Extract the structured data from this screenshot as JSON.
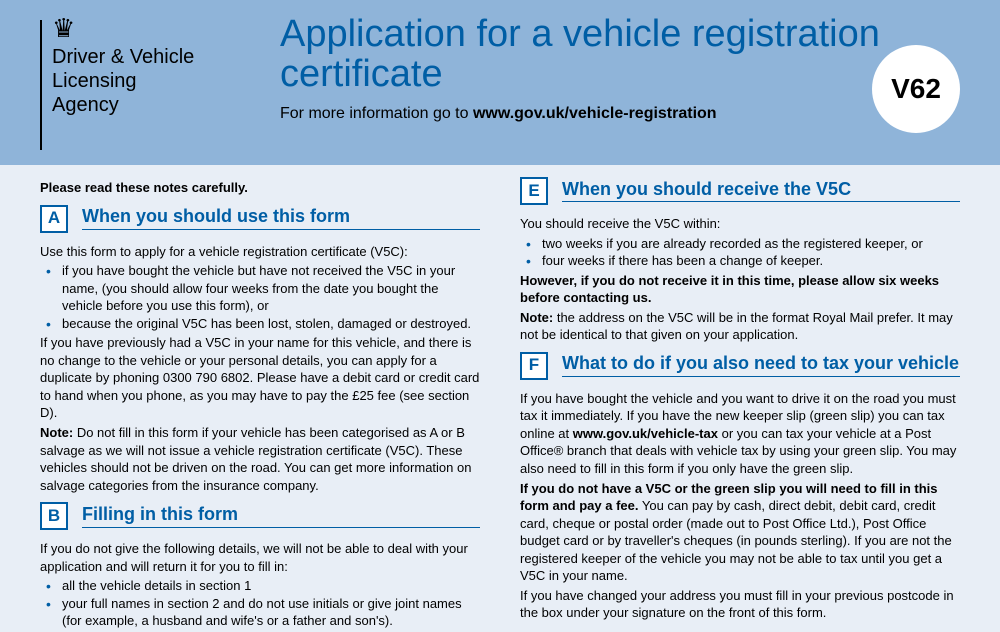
{
  "header": {
    "agency_name": "Driver & Vehicle\nLicensing\nAgency",
    "title": "Application for a vehicle registration certificate",
    "subline_prefix": "For more information go to ",
    "subline_url": "www.gov.uk/vehicle-registration",
    "form_code": "V62"
  },
  "intro": "Please read these notes carefully.",
  "sections": {
    "A": {
      "letter": "A",
      "title": "When you should use this form",
      "lead": "Use this form to apply for a vehicle registration certificate (V5C):",
      "bullets": [
        "if you have bought the vehicle but have not received the V5C in your name, (you should allow four weeks from the date you bought the vehicle before you use this form), or",
        "because the original V5C has been lost, stolen, damaged or destroyed."
      ],
      "para1": "If you have previously had a V5C in your name for this vehicle, and there is no change to the vehicle or your personal details, you can apply for a duplicate by phoning 0300 790 6802. Please have a debit card or credit card to hand when you phone, as you may have to pay the £25 fee (see section D).",
      "note_label": "Note:",
      "note_body": " Do not fill in this form if your vehicle has been categorised as A or B salvage as we will not issue a vehicle registration certificate (V5C). These vehicles should not be driven on the road. You can get more information on salvage categories from the insurance company."
    },
    "B": {
      "letter": "B",
      "title": "Filling in this form",
      "lead": "If you do not give the following details, we will not be able to deal with your application and will return it for you to fill in:",
      "bullets": [
        "all the vehicle details in section 1",
        "your full names in section 2 and do not use initials or give joint names (for example, a husband and wife's or a father and son's)."
      ]
    },
    "E": {
      "letter": "E",
      "title": "When you should receive the V5C",
      "lead": "You should receive the V5C within:",
      "bullets": [
        "two weeks if you are already recorded as the registered keeper, or",
        "four weeks if there has been a change of keeper."
      ],
      "however": "However, if you do not receive it in this time, please allow six weeks before contacting us.",
      "note_label": "Note:",
      "note_body": " the address on the V5C will be in the format Royal Mail prefer. It may not be identical to that given on your application."
    },
    "F": {
      "letter": "F",
      "title": "What to do if you also need to tax your vehicle",
      "p1a": "If you have bought the vehicle and you want to drive it on the road you must tax it immediately. If you have the new keeper slip (green slip) you can tax online at ",
      "p1url": "www.gov.uk/vehicle-tax",
      "p1b": " or you can tax your vehicle at a Post Office® branch that deals with vehicle tax by using your green slip. You may also need to fill in this form if you only have the green slip.",
      "bold_mid": "If you do not have a V5C or the green slip you will need to fill in this form and pay a fee.",
      "p2": " You can pay by cash, direct debit, debit card, credit card, cheque or postal order (made out to Post Office Ltd.), Post Office budget card or by traveller's cheques (in pounds sterling). If you are not the registered keeper of the vehicle you may not be able to tax until you get a V5C in your name.",
      "p3": "If you have changed your address you must fill in your previous postcode in the box under your signature on the front of this form."
    }
  },
  "colors": {
    "header_bg": "#8fb4d9",
    "body_bg": "#e8eef6",
    "accent": "#005ea5"
  }
}
